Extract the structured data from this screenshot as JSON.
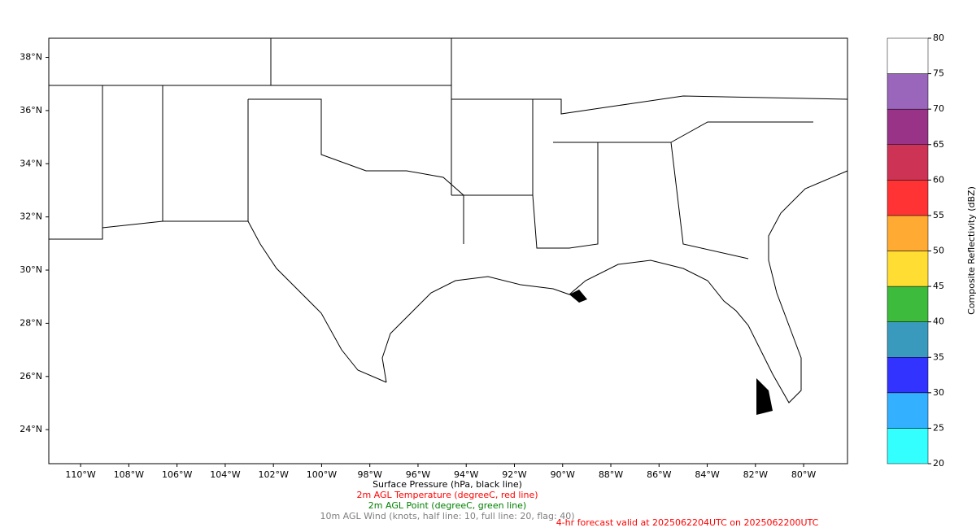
{
  "map": {
    "lon_lim": [
      -111.32,
      -78.18
    ],
    "lat_lim": [
      22.72,
      38.72
    ],
    "lat_ticks": [
      {
        "value": 24,
        "label": "24°N"
      },
      {
        "value": 26,
        "label": "26°N"
      },
      {
        "value": 28,
        "label": "28°N"
      },
      {
        "value": 30,
        "label": "30°N"
      },
      {
        "value": 32,
        "label": "32°N"
      },
      {
        "value": 34,
        "label": "34°N"
      },
      {
        "value": 36,
        "label": "36°N"
      },
      {
        "value": 38,
        "label": "38°N"
      }
    ],
    "lon_ticks": [
      {
        "value": -110,
        "label": "110°W"
      },
      {
        "value": -108,
        "label": "108°W"
      },
      {
        "value": -106,
        "label": "106°W"
      },
      {
        "value": -104,
        "label": "104°W"
      },
      {
        "value": -102,
        "label": "102°W"
      },
      {
        "value": -100,
        "label": "100°W"
      },
      {
        "value": -98,
        "label": "98°W"
      },
      {
        "value": -96,
        "label": "96°W"
      },
      {
        "value": -94,
        "label": "94°W"
      },
      {
        "value": -92,
        "label": "92°W"
      },
      {
        "value": -90,
        "label": "90°W"
      },
      {
        "value": -88,
        "label": "88°W"
      },
      {
        "value": -86,
        "label": "86°W"
      },
      {
        "value": -84,
        "label": "84°W"
      },
      {
        "value": -82,
        "label": "82°W"
      },
      {
        "value": -80,
        "label": "80°W"
      }
    ]
  },
  "colorbar": {
    "label": "Composite Reflectivity (dBZ)",
    "lim": [
      20,
      80
    ],
    "ticks": [
      20,
      25,
      30,
      35,
      40,
      45,
      50,
      55,
      60,
      65,
      70,
      75,
      80
    ],
    "colors": [
      "#33ffff",
      "#33b0ff",
      "#3333ff",
      "#3a9abd",
      "#3cbb3c",
      "#ffdd33",
      "#ffaa33",
      "#ff3333",
      "#cc3355",
      "#993388",
      "#9966bb",
      "#ffffff"
    ]
  },
  "captions": [
    {
      "text": "Surface Pressure (hPa, black line)",
      "color": "#000000"
    },
    {
      "text": "2m AGL Temperature (degreeC, red line)",
      "color": "#ff0000"
    },
    {
      "text": "2m AGL Point (degreeC, green line)",
      "color": "#008000"
    },
    {
      "text": "10m AGL Wind (knots, half line: 10, full line: 20, flag: 40)",
      "color": "#808080"
    }
  ],
  "forecast": {
    "text": "4-hr forecast valid at 2025062204UTC on 2025062200UTC",
    "color": "#ff0000"
  }
}
